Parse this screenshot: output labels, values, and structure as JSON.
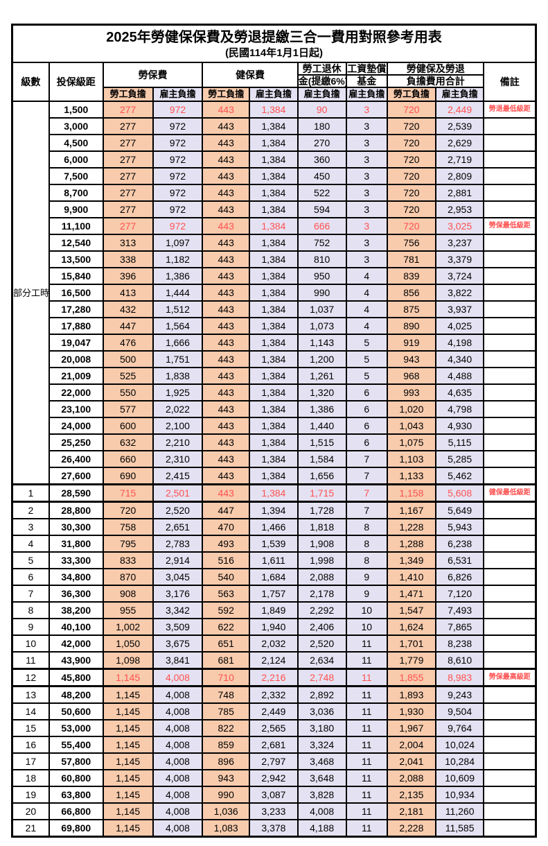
{
  "title": "2025年勞健保保費及勞退提繳三合一費用對照參考用表",
  "subtitle": "(民國114年1月1日起)",
  "colors": {
    "employee_fill": "#F8CBAD",
    "employer_fill": "#E4E2F2",
    "highlight_text": "#FF5050",
    "border": "#000000"
  },
  "header": {
    "level": "級數",
    "bracket": "投保級距",
    "labor_ins": "勞保費",
    "health_ins": "健保費",
    "pension_line1": "勞工退休",
    "pension_line2": "金(提繳6%)",
    "wage_fund_line1": "工資墊償",
    "wage_fund_line2": "基金",
    "total_line1": "勞健保及勞退",
    "total_line2": "負擔費用合計",
    "remark": "備註",
    "employee": "勞工負擔",
    "employer": "雇主負擔"
  },
  "part_time_label": "部分工時",
  "part_time_rowspan": 23,
  "rows": [
    {
      "bracket": "1,500",
      "values": [
        "277",
        "972",
        "443",
        "1,384",
        "90",
        "3",
        "720",
        "2,449"
      ],
      "remark": "勞退最低級距",
      "red": true
    },
    {
      "bracket": "3,000",
      "values": [
        "277",
        "972",
        "443",
        "1,384",
        "180",
        "3",
        "720",
        "2,539"
      ]
    },
    {
      "bracket": "4,500",
      "values": [
        "277",
        "972",
        "443",
        "1,384",
        "270",
        "3",
        "720",
        "2,629"
      ]
    },
    {
      "bracket": "6,000",
      "values": [
        "277",
        "972",
        "443",
        "1,384",
        "360",
        "3",
        "720",
        "2,719"
      ]
    },
    {
      "bracket": "7,500",
      "values": [
        "277",
        "972",
        "443",
        "1,384",
        "450",
        "3",
        "720",
        "2,809"
      ]
    },
    {
      "bracket": "8,700",
      "values": [
        "277",
        "972",
        "443",
        "1,384",
        "522",
        "3",
        "720",
        "2,881"
      ]
    },
    {
      "bracket": "9,900",
      "values": [
        "277",
        "972",
        "443",
        "1,384",
        "594",
        "3",
        "720",
        "2,953"
      ]
    },
    {
      "bracket": "11,100",
      "values": [
        "277",
        "972",
        "443",
        "1,384",
        "666",
        "3",
        "720",
        "3,025"
      ],
      "remark": "勞保最低級距",
      "red": true
    },
    {
      "bracket": "12,540",
      "values": [
        "313",
        "1,097",
        "443",
        "1,384",
        "752",
        "3",
        "756",
        "3,237"
      ]
    },
    {
      "bracket": "13,500",
      "values": [
        "338",
        "1,182",
        "443",
        "1,384",
        "810",
        "3",
        "781",
        "3,379"
      ]
    },
    {
      "bracket": "15,840",
      "values": [
        "396",
        "1,386",
        "443",
        "1,384",
        "950",
        "4",
        "839",
        "3,724"
      ]
    },
    {
      "bracket": "16,500",
      "values": [
        "413",
        "1,444",
        "443",
        "1,384",
        "990",
        "4",
        "856",
        "3,822"
      ]
    },
    {
      "bracket": "17,280",
      "values": [
        "432",
        "1,512",
        "443",
        "1,384",
        "1,037",
        "4",
        "875",
        "3,937"
      ]
    },
    {
      "bracket": "17,880",
      "values": [
        "447",
        "1,564",
        "443",
        "1,384",
        "1,073",
        "4",
        "890",
        "4,025"
      ]
    },
    {
      "bracket": "19,047",
      "values": [
        "476",
        "1,666",
        "443",
        "1,384",
        "1,143",
        "5",
        "919",
        "4,198"
      ]
    },
    {
      "bracket": "20,008",
      "values": [
        "500",
        "1,751",
        "443",
        "1,384",
        "1,200",
        "5",
        "943",
        "4,340"
      ]
    },
    {
      "bracket": "21,009",
      "values": [
        "525",
        "1,838",
        "443",
        "1,384",
        "1,261",
        "5",
        "968",
        "4,488"
      ]
    },
    {
      "bracket": "22,000",
      "values": [
        "550",
        "1,925",
        "443",
        "1,384",
        "1,320",
        "6",
        "993",
        "4,635"
      ]
    },
    {
      "bracket": "23,100",
      "values": [
        "577",
        "2,022",
        "443",
        "1,384",
        "1,386",
        "6",
        "1,020",
        "4,798"
      ]
    },
    {
      "bracket": "24,000",
      "values": [
        "600",
        "2,100",
        "443",
        "1,384",
        "1,440",
        "6",
        "1,043",
        "4,930"
      ]
    },
    {
      "bracket": "25,250",
      "values": [
        "632",
        "2,210",
        "443",
        "1,384",
        "1,515",
        "6",
        "1,075",
        "5,115"
      ]
    },
    {
      "bracket": "26,400",
      "values": [
        "660",
        "2,310",
        "443",
        "1,384",
        "1,584",
        "7",
        "1,103",
        "5,285"
      ]
    },
    {
      "bracket": "27,600",
      "values": [
        "690",
        "2,415",
        "443",
        "1,384",
        "1,656",
        "7",
        "1,133",
        "5,462"
      ]
    },
    {
      "level": "1",
      "bracket": "28,590",
      "values": [
        "715",
        "2,501",
        "443",
        "1,384",
        "1,715",
        "7",
        "1,158",
        "5,608"
      ],
      "remark": "健保最低級距",
      "red": true,
      "boundary": true
    },
    {
      "level": "2",
      "bracket": "28,800",
      "values": [
        "720",
        "2,520",
        "447",
        "1,394",
        "1,728",
        "7",
        "1,167",
        "5,649"
      ]
    },
    {
      "level": "3",
      "bracket": "30,300",
      "values": [
        "758",
        "2,651",
        "470",
        "1,466",
        "1,818",
        "8",
        "1,228",
        "5,943"
      ]
    },
    {
      "level": "4",
      "bracket": "31,800",
      "values": [
        "795",
        "2,783",
        "493",
        "1,539",
        "1,908",
        "8",
        "1,288",
        "6,238"
      ]
    },
    {
      "level": "5",
      "bracket": "33,300",
      "values": [
        "833",
        "2,914",
        "516",
        "1,611",
        "1,998",
        "8",
        "1,349",
        "6,531"
      ]
    },
    {
      "level": "6",
      "bracket": "34,800",
      "values": [
        "870",
        "3,045",
        "540",
        "1,684",
        "2,088",
        "9",
        "1,410",
        "6,826"
      ]
    },
    {
      "level": "7",
      "bracket": "36,300",
      "values": [
        "908",
        "3,176",
        "563",
        "1,757",
        "2,178",
        "9",
        "1,471",
        "7,120"
      ]
    },
    {
      "level": "8",
      "bracket": "38,200",
      "values": [
        "955",
        "3,342",
        "592",
        "1,849",
        "2,292",
        "10",
        "1,547",
        "7,493"
      ]
    },
    {
      "level": "9",
      "bracket": "40,100",
      "values": [
        "1,002",
        "3,509",
        "622",
        "1,940",
        "2,406",
        "10",
        "1,624",
        "7,865"
      ]
    },
    {
      "level": "10",
      "bracket": "42,000",
      "values": [
        "1,050",
        "3,675",
        "651",
        "2,032",
        "2,520",
        "11",
        "1,701",
        "8,238"
      ]
    },
    {
      "level": "11",
      "bracket": "43,900",
      "values": [
        "1,098",
        "3,841",
        "681",
        "2,124",
        "2,634",
        "11",
        "1,779",
        "8,610"
      ]
    },
    {
      "level": "12",
      "bracket": "45,800",
      "values": [
        "1,145",
        "4,008",
        "710",
        "2,216",
        "2,748",
        "11",
        "1,855",
        "8,983"
      ],
      "remark": "勞保最高級距",
      "red": true,
      "boundary": true
    },
    {
      "level": "13",
      "bracket": "48,200",
      "values": [
        "1,145",
        "4,008",
        "748",
        "2,332",
        "2,892",
        "11",
        "1,893",
        "9,243"
      ]
    },
    {
      "level": "14",
      "bracket": "50,600",
      "values": [
        "1,145",
        "4,008",
        "785",
        "2,449",
        "3,036",
        "11",
        "1,930",
        "9,504"
      ]
    },
    {
      "level": "15",
      "bracket": "53,000",
      "values": [
        "1,145",
        "4,008",
        "822",
        "2,565",
        "3,180",
        "11",
        "1,967",
        "9,764"
      ]
    },
    {
      "level": "16",
      "bracket": "55,400",
      "values": [
        "1,145",
        "4,008",
        "859",
        "2,681",
        "3,324",
        "11",
        "2,004",
        "10,024"
      ]
    },
    {
      "level": "17",
      "bracket": "57,800",
      "values": [
        "1,145",
        "4,008",
        "896",
        "2,797",
        "3,468",
        "11",
        "2,041",
        "10,284"
      ]
    },
    {
      "level": "18",
      "bracket": "60,800",
      "values": [
        "1,145",
        "4,008",
        "943",
        "2,942",
        "3,648",
        "11",
        "2,088",
        "10,609"
      ]
    },
    {
      "level": "19",
      "bracket": "63,800",
      "values": [
        "1,145",
        "4,008",
        "990",
        "3,087",
        "3,828",
        "11",
        "2,135",
        "10,934"
      ]
    },
    {
      "level": "20",
      "bracket": "66,800",
      "values": [
        "1,145",
        "4,008",
        "1,036",
        "3,233",
        "4,008",
        "11",
        "2,181",
        "11,260"
      ]
    },
    {
      "level": "21",
      "bracket": "69,800",
      "values": [
        "1,145",
        "4,008",
        "1,083",
        "3,378",
        "4,188",
        "11",
        "2,228",
        "11,585"
      ]
    }
  ]
}
